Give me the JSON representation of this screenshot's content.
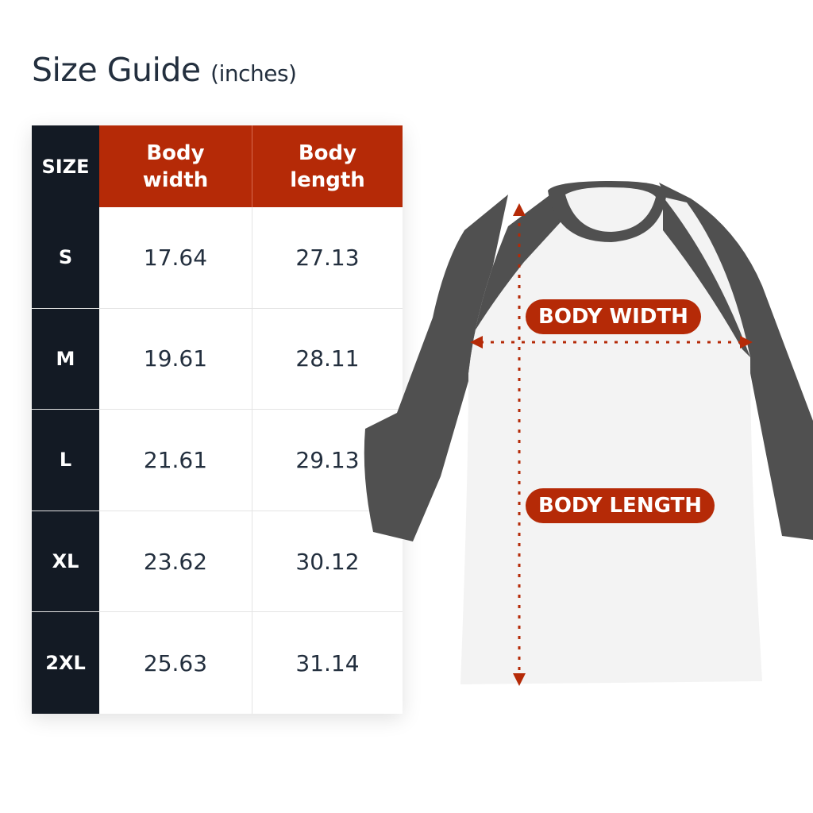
{
  "title": {
    "main": "Size Guide",
    "unit": "(inches)"
  },
  "table": {
    "headers": [
      "SIZE",
      "Body\nwidth",
      "Body\nlength"
    ],
    "header_lines": {
      "width": [
        "Body",
        "width"
      ],
      "length": [
        "Body",
        "length"
      ]
    },
    "rows": [
      {
        "size": "S",
        "width": "17.64",
        "length": "27.13"
      },
      {
        "size": "M",
        "width": "19.61",
        "length": "28.11"
      },
      {
        "size": "L",
        "width": "21.61",
        "length": "29.13"
      },
      {
        "size": "XL",
        "width": "23.62",
        "length": "30.12"
      },
      {
        "size": "2XL",
        "width": "25.63",
        "length": "31.14"
      }
    ]
  },
  "diagram": {
    "width_label": "BODY WIDTH",
    "length_label": "BODY LENGTH"
  },
  "colors": {
    "accent": "#b52a07",
    "dark": "#131a24",
    "sleeve": "#505050"
  }
}
